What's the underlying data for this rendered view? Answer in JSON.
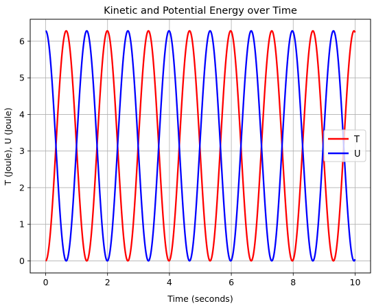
{
  "chart_data": {
    "type": "line",
    "title": "Kinetic and Potential Energy over Time",
    "xlabel": "Time (seconds)",
    "ylabel": "T (Joule), U (Joule)",
    "xlim": [
      -0.5,
      10.5
    ],
    "ylim": [
      -0.33,
      6.6
    ],
    "xticks": [
      0,
      2,
      4,
      6,
      8,
      10
    ],
    "yticks": [
      0,
      1,
      2,
      3,
      4,
      5,
      6
    ],
    "grid": true,
    "legend_position": "center-right",
    "total_energy": 6.2832,
    "period_seconds": 1.3286,
    "x_range": [
      0,
      10
    ],
    "series": [
      {
        "name": "T",
        "color": "#ff0000",
        "formula": "E*sin^2(pi*t/P)"
      },
      {
        "name": "U",
        "color": "#0000ff",
        "formula": "E*cos^2(pi*t/P)"
      }
    ]
  }
}
